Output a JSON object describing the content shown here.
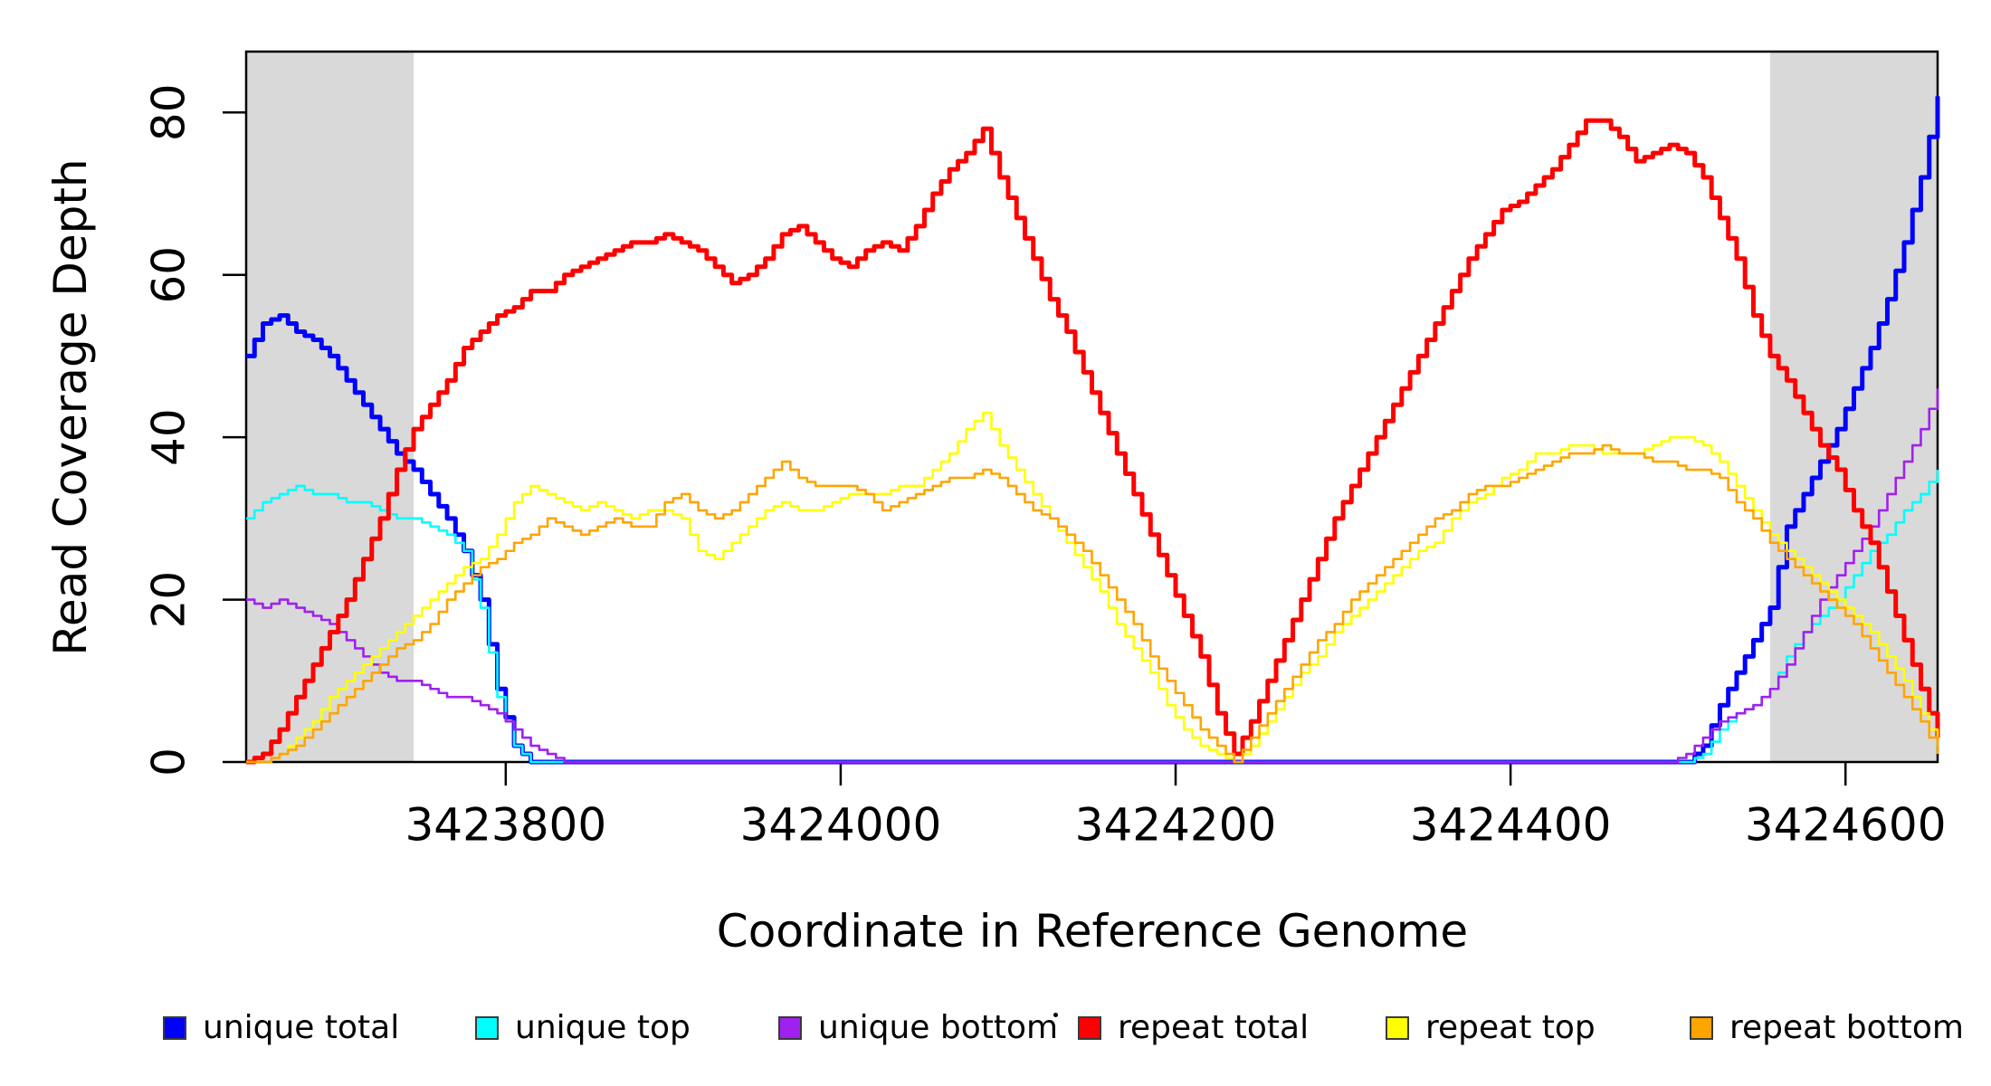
{
  "chart_data": {
    "type": "line",
    "title": "",
    "xlabel": "Coordinate in Reference Genome",
    "ylabel": "Read Coverage Depth",
    "xlim": [
      3423645,
      3424655
    ],
    "ylim": [
      0,
      87.5
    ],
    "x_ticks": [
      3423800,
      3424000,
      3424200,
      3424400,
      3424600
    ],
    "y_ticks": [
      0,
      20,
      40,
      60,
      80
    ],
    "grid": false,
    "legend_position": "bottom",
    "line_style": "step",
    "shaded_regions": [
      {
        "x0": 3423645,
        "x1": 3423745,
        "color": "#d9d9d9"
      },
      {
        "x0": 3424555,
        "x1": 3424655,
        "color": "#d9d9d9"
      }
    ],
    "x_start": 3423645,
    "x_step": 10,
    "series": [
      {
        "name": "unique total",
        "color": "#0000ff",
        "width": 5,
        "values": [
          50,
          54,
          55,
          53,
          52,
          50,
          47,
          44,
          41,
          38,
          36,
          33,
          30,
          26,
          20,
          9,
          2,
          0,
          0,
          0,
          0,
          0,
          0,
          0,
          0,
          0,
          0,
          0,
          0,
          0,
          0,
          0,
          0,
          0,
          0,
          0,
          0,
          0,
          0,
          0,
          0,
          0,
          0,
          0,
          0,
          0,
          0,
          0,
          0,
          0,
          0,
          0,
          0,
          0,
          0,
          0,
          0,
          0,
          0,
          0,
          0,
          0,
          0,
          0,
          0,
          0,
          0,
          0,
          0,
          0,
          0,
          0,
          0,
          0,
          0,
          0,
          0,
          0,
          0,
          0,
          0,
          0,
          0,
          0,
          0,
          0,
          0,
          2,
          7,
          11,
          15,
          19,
          29,
          33,
          37,
          41,
          46,
          51,
          57,
          64,
          72,
          82
        ]
      },
      {
        "name": "unique top",
        "color": "#00ffff",
        "width": 2.6,
        "values": [
          30,
          32,
          33,
          34,
          33,
          33,
          32,
          32,
          31,
          30,
          30,
          29,
          28,
          26,
          19,
          8,
          2,
          0,
          0,
          0,
          0,
          0,
          0,
          0,
          0,
          0,
          0,
          0,
          0,
          0,
          0,
          0,
          0,
          0,
          0,
          0,
          0,
          0,
          0,
          0,
          0,
          0,
          0,
          0,
          0,
          0,
          0,
          0,
          0,
          0,
          0,
          0,
          0,
          0,
          0,
          0,
          0,
          0,
          0,
          0,
          0,
          0,
          0,
          0,
          0,
          0,
          0,
          0,
          0,
          0,
          0,
          0,
          0,
          0,
          0,
          0,
          0,
          0,
          0,
          0,
          0,
          0,
          0,
          0,
          0,
          0,
          0,
          1,
          4,
          6,
          7,
          9,
          13,
          16,
          18,
          20,
          23,
          26,
          28,
          31,
          33,
          36
        ]
      },
      {
        "name": "unique bottom",
        "color": "#a020f0",
        "width": 2.6,
        "values": [
          20,
          19,
          20,
          19,
          18,
          17,
          15,
          13,
          11,
          10,
          10,
          9,
          8,
          8,
          7,
          6,
          4,
          2,
          1,
          0,
          0,
          0,
          0,
          0,
          0,
          0,
          0,
          0,
          0,
          0,
          0,
          0,
          0,
          0,
          0,
          0,
          0,
          0,
          0,
          0,
          0,
          0,
          0,
          0,
          0,
          0,
          0,
          0,
          0,
          0,
          0,
          0,
          0,
          0,
          0,
          0,
          0,
          0,
          0,
          0,
          0,
          0,
          0,
          0,
          0,
          0,
          0,
          0,
          0,
          0,
          0,
          0,
          0,
          0,
          0,
          0,
          0,
          0,
          0,
          0,
          0,
          0,
          0,
          0,
          0,
          0,
          1,
          3,
          5,
          6,
          7,
          9,
          12,
          16,
          20,
          23,
          26,
          29,
          33,
          37,
          41,
          46
        ]
      },
      {
        "name": "repeat total",
        "color": "#ff0000",
        "width": 5,
        "values": [
          0,
          1,
          4,
          8,
          12,
          16,
          20,
          25,
          30,
          36,
          41,
          44,
          47,
          51,
          53,
          55,
          56,
          58,
          58,
          60,
          61,
          62,
          63,
          64,
          64,
          65,
          64,
          63,
          61,
          59,
          60,
          62,
          65,
          66,
          64,
          62,
          61,
          63,
          64,
          63,
          66,
          70,
          73,
          75,
          78,
          72,
          67,
          62,
          57,
          53,
          48,
          43,
          38,
          33,
          28,
          23,
          18,
          13,
          6,
          1,
          5,
          10,
          15,
          20,
          25,
          30,
          34,
          38,
          42,
          46,
          50,
          54,
          58,
          62,
          65,
          68,
          69,
          71,
          73,
          76,
          79,
          79,
          77,
          74,
          75,
          76,
          75,
          72,
          67,
          62,
          55,
          50,
          47,
          43,
          39,
          36,
          31,
          27,
          21,
          15,
          9,
          3
        ]
      },
      {
        "name": "repeat top",
        "color": "#ffff00",
        "width": 2.6,
        "values": [
          0,
          0,
          1,
          3,
          5,
          8,
          10,
          12,
          14,
          16,
          18,
          20,
          22,
          24,
          25,
          28,
          32,
          34,
          33,
          32,
          31,
          32,
          31,
          30,
          31,
          31,
          30,
          26,
          25,
          27,
          29,
          31,
          32,
          31,
          31,
          32,
          33,
          33,
          33,
          34,
          34,
          36,
          38,
          41,
          43,
          39,
          36,
          33,
          30,
          27,
          24,
          21,
          17,
          14,
          11,
          7,
          4,
          2,
          1,
          0,
          2,
          5,
          8,
          11,
          13,
          16,
          18,
          20,
          22,
          24,
          26,
          27,
          30,
          32,
          33,
          35,
          36,
          38,
          38,
          39,
          39,
          38,
          38,
          38,
          39,
          40,
          40,
          39,
          37,
          34,
          31,
          28,
          26,
          24,
          22,
          20,
          18,
          16,
          13,
          10,
          6,
          2
        ]
      },
      {
        "name": "repeat bottom",
        "color": "#ffa500",
        "width": 2.6,
        "values": [
          0,
          0,
          1,
          2,
          4,
          6,
          8,
          10,
          12,
          14,
          15,
          17,
          20,
          22,
          24,
          25,
          27,
          28,
          30,
          29,
          28,
          29,
          30,
          29,
          29,
          32,
          33,
          31,
          30,
          31,
          33,
          35,
          37,
          35,
          34,
          34,
          34,
          33,
          31,
          32,
          33,
          34,
          35,
          35,
          36,
          35,
          33,
          31,
          30,
          28,
          26,
          23,
          20,
          17,
          13,
          10,
          7,
          4,
          2,
          0,
          3,
          6,
          9,
          12,
          15,
          17,
          20,
          22,
          24,
          26,
          28,
          30,
          31,
          33,
          34,
          34,
          35,
          36,
          37,
          38,
          38,
          39,
          38,
          38,
          37,
          37,
          36,
          36,
          35,
          32,
          30,
          27,
          25,
          23,
          21,
          19,
          17,
          14,
          11,
          8,
          5,
          1
        ]
      }
    ]
  },
  "axes": {
    "x": {
      "title": "Coordinate in Reference Genome",
      "tick_labels": [
        "3423800",
        "3424000",
        "3424200",
        "3424400",
        "3424600"
      ]
    },
    "y": {
      "title": "Read Coverage Depth",
      "tick_labels": [
        "0",
        "20",
        "40",
        "60",
        "80"
      ]
    }
  },
  "legend": {
    "items": [
      {
        "label": "unique total",
        "color": "#0000ff"
      },
      {
        "label": "unique top",
        "color": "#00ffff"
      },
      {
        "label": "unique bottom",
        "color": "#a020f0"
      },
      {
        "label": "repeat total",
        "color": "#ff0000"
      },
      {
        "label": "repeat top",
        "color": "#ffff00"
      },
      {
        "label": "repeat bottom",
        "color": "#ffa500"
      }
    ]
  },
  "style": {
    "box_color": "#000000",
    "background": "#ffffff",
    "shade_color": "#d9d9d9"
  }
}
